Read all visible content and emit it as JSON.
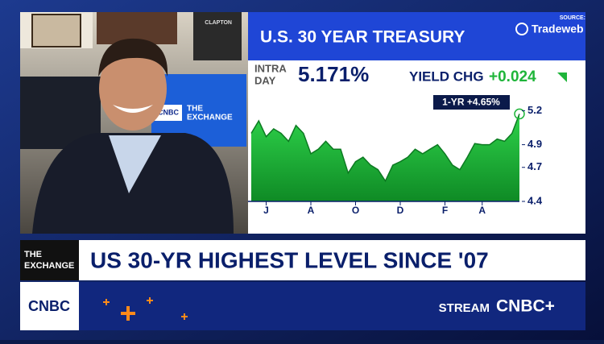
{
  "source_label": "SOURCE:",
  "source": "Tradeweb",
  "video": {
    "screen_logo": "CNBC",
    "screen_title": [
      "THE",
      "EXCHANGE"
    ],
    "poster": "CLAPTON"
  },
  "chart_data": {
    "type": "area",
    "title": "U.S. 30 YEAR TREASURY",
    "ticker": {
      "intra_label": [
        "INTRA",
        "DAY"
      ],
      "yield": "5.171%",
      "chg_label": "YIELD CHG",
      "chg": "+0.024"
    },
    "annotation": "1-YR +4.65%",
    "categories": [
      null,
      null,
      "J",
      null,
      null,
      null,
      null,
      null,
      "A",
      null,
      null,
      null,
      null,
      null,
      "O",
      null,
      null,
      null,
      null,
      null,
      "D",
      null,
      null,
      null,
      null,
      null,
      "F",
      null,
      null,
      null,
      null,
      "A",
      null,
      null,
      null,
      null,
      null
    ],
    "values": [
      5.0,
      5.11,
      4.97,
      5.04,
      5.0,
      4.93,
      5.07,
      5.0,
      4.82,
      4.86,
      4.93,
      4.86,
      4.86,
      4.65,
      4.75,
      4.79,
      4.72,
      4.68,
      4.58,
      4.72,
      4.75,
      4.79,
      4.86,
      4.82,
      4.86,
      4.9,
      4.82,
      4.72,
      4.68,
      4.79,
      4.91,
      4.9,
      4.9,
      4.95,
      4.93,
      5.0,
      5.171
    ],
    "color": "#1fb53a",
    "ylim": [
      4.4,
      5.38
    ],
    "yticks": [
      4.4,
      4.7,
      4.9,
      5.2
    ]
  },
  "lower_third": {
    "tag": [
      "THE",
      "EXCHANGE"
    ],
    "headline": "US 30-YR HIGHEST LEVEL SINCE '07",
    "network": "CNBC",
    "stream": "STREAM",
    "stream_brand": "CNBC+"
  }
}
